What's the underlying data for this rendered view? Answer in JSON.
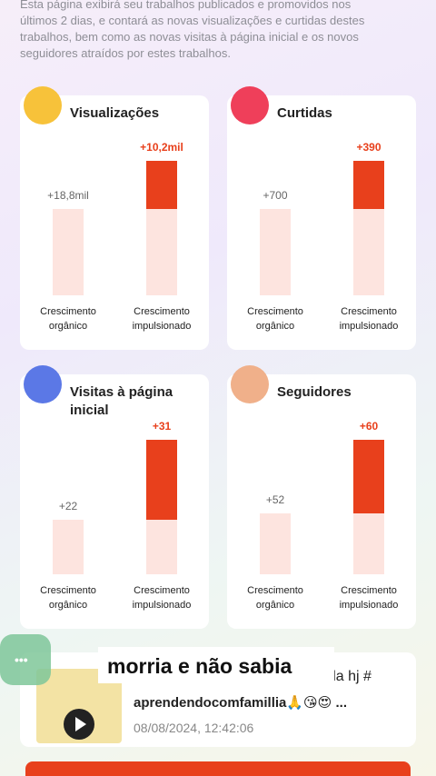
{
  "intro": [
    "Esta página exibirá seu trabalhos publicados e promovidos nos",
    "últimos 2 dias, e contará as novas visualizações e curtidas destes",
    "trabalhos, bem como as novas visitas à página inicial e os novos",
    "seguidores atraídos por estes trabalhos."
  ],
  "cards": [
    {
      "title": "Visualizações",
      "organic_value": "+18,8mil",
      "boosted_value": "+10,2mil",
      "organic_caption": [
        "Crescimento",
        "orgânico"
      ],
      "boosted_caption": [
        "Crescimento",
        "impulsionado"
      ]
    },
    {
      "title": "Curtidas",
      "organic_value": "+700",
      "boosted_value": "+390",
      "organic_caption": [
        "Crescimento",
        "orgânico"
      ],
      "boosted_caption": [
        "Crescimento",
        "impulsionado"
      ]
    },
    {
      "title": "Visitas à página inicial",
      "organic_value": "+22",
      "boosted_value": "+31",
      "organic_caption": [
        "Crescimento",
        "orgânico"
      ],
      "boosted_caption": [
        "Crescimento",
        "impulsionado"
      ]
    },
    {
      "title": "Seguidores",
      "organic_value": "+52",
      "boosted_value": "+60",
      "organic_caption": [
        "Crescimento",
        "orgânico"
      ],
      "boosted_caption": [
        "Crescimento",
        "impulsionado"
      ]
    }
  ],
  "post": {
    "caption_line1": "nda hj #",
    "caption_line2": "aprendendocomfamillia🙏😘😍 ...",
    "date": "08/08/2024, 12:42:06",
    "overlay_text": "morria e não sabia"
  }
}
